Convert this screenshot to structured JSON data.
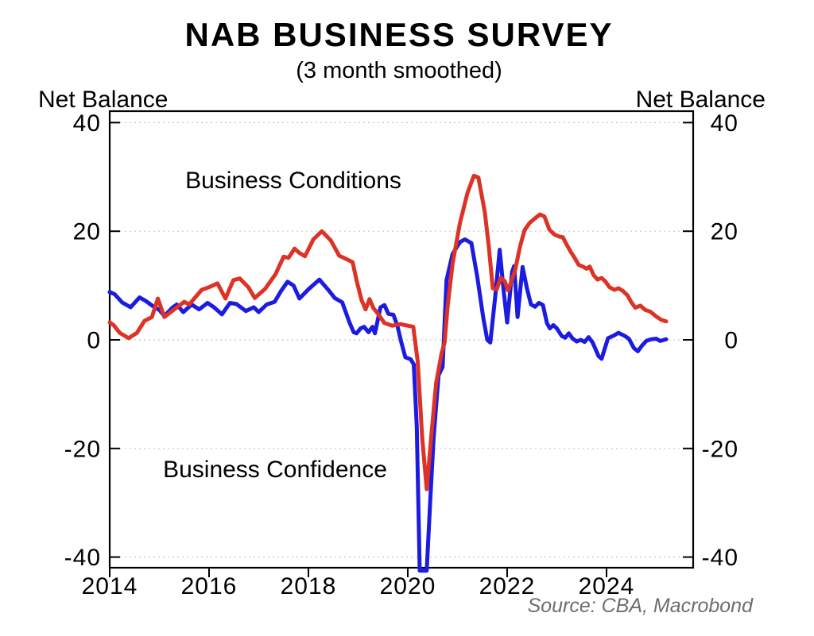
{
  "header": {
    "title": "NAB BUSINESS SURVEY",
    "subtitle": "(3 month smoothed)"
  },
  "axis": {
    "y_label_left": "Net Balance",
    "y_label_right": "Net Balance",
    "y_ticks": [
      40,
      20,
      0,
      -20,
      -40
    ],
    "x_ticks": [
      2014,
      2016,
      2018,
      2020,
      2022,
      2024
    ]
  },
  "source": {
    "text": "Source: CBA, Macrobond"
  },
  "colors": {
    "conditions": "#dd3226",
    "confidence": "#1c1ce0",
    "grid": "#c8c8c8",
    "frame": "#000000",
    "source_text": "#6e6e6e"
  },
  "chart_data": {
    "type": "line",
    "title": "NAB BUSINESS SURVEY",
    "subtitle": "(3 month smoothed)",
    "ylabel": "Net Balance",
    "xlabel": "",
    "xlim": [
      2014,
      2025.76
    ],
    "ylim": [
      -42,
      42.5
    ],
    "x_ticks": [
      2014,
      2016,
      2018,
      2020,
      2022,
      2024
    ],
    "y_ticks": [
      40,
      20,
      0,
      -20,
      -40
    ],
    "grid": "horizontal dotted gridlines at y ticks",
    "legend": "inline colored labels on plot",
    "series": [
      {
        "name": "Business Conditions",
        "color": "#dd3226",
        "points": [
          [
            2014.0,
            3.2
          ],
          [
            2014.08,
            2.7
          ],
          [
            2014.2,
            1.3
          ],
          [
            2014.38,
            0.3
          ],
          [
            2014.55,
            1.3
          ],
          [
            2014.7,
            3.5
          ],
          [
            2014.85,
            4.2
          ],
          [
            2014.97,
            7.6
          ],
          [
            2015.1,
            4.2
          ],
          [
            2015.3,
            5.6
          ],
          [
            2015.5,
            7.0
          ],
          [
            2015.6,
            6.5
          ],
          [
            2015.85,
            9.2
          ],
          [
            2016.0,
            9.7
          ],
          [
            2016.17,
            10.4
          ],
          [
            2016.33,
            7.6
          ],
          [
            2016.49,
            11.0
          ],
          [
            2016.62,
            11.3
          ],
          [
            2016.79,
            9.7
          ],
          [
            2016.92,
            7.7
          ],
          [
            2017.13,
            9.4
          ],
          [
            2017.34,
            12.1
          ],
          [
            2017.5,
            15.3
          ],
          [
            2017.6,
            15.1
          ],
          [
            2017.72,
            16.8
          ],
          [
            2017.82,
            16.0
          ],
          [
            2017.93,
            15.4
          ],
          [
            2018.1,
            18.5
          ],
          [
            2018.27,
            20.0
          ],
          [
            2018.45,
            18.3
          ],
          [
            2018.62,
            15.5
          ],
          [
            2018.78,
            14.8
          ],
          [
            2018.89,
            14.3
          ],
          [
            2018.97,
            10.9
          ],
          [
            2019.07,
            7.3
          ],
          [
            2019.15,
            5.6
          ],
          [
            2019.23,
            7.5
          ],
          [
            2019.31,
            5.8
          ],
          [
            2019.4,
            4.8
          ],
          [
            2019.53,
            3.1
          ],
          [
            2019.69,
            2.6
          ],
          [
            2019.85,
            2.9
          ],
          [
            2020.0,
            2.6
          ],
          [
            2020.11,
            2.4
          ],
          [
            2020.2,
            -4.0
          ],
          [
            2020.29,
            -18.0
          ],
          [
            2020.38,
            -27.5
          ],
          [
            2020.47,
            -18.0
          ],
          [
            2020.57,
            -8.0
          ],
          [
            2020.68,
            -2.5
          ],
          [
            2020.74,
            -0.5
          ],
          [
            2020.8,
            6.0
          ],
          [
            2020.9,
            14.0
          ],
          [
            2021.05,
            21.5
          ],
          [
            2021.2,
            27.0
          ],
          [
            2021.33,
            30.2
          ],
          [
            2021.42,
            29.9
          ],
          [
            2021.55,
            23.5
          ],
          [
            2021.63,
            17.2
          ],
          [
            2021.71,
            9.5
          ],
          [
            2021.79,
            9.3
          ],
          [
            2021.87,
            11.4
          ],
          [
            2021.95,
            10.8
          ],
          [
            2022.02,
            9.1
          ],
          [
            2022.16,
            12.8
          ],
          [
            2022.26,
            17.2
          ],
          [
            2022.35,
            20.2
          ],
          [
            2022.45,
            21.5
          ],
          [
            2022.55,
            22.3
          ],
          [
            2022.66,
            23.1
          ],
          [
            2022.75,
            22.7
          ],
          [
            2022.85,
            20.3
          ],
          [
            2022.95,
            19.4
          ],
          [
            2023.05,
            19.0
          ],
          [
            2023.12,
            18.9
          ],
          [
            2023.2,
            17.5
          ],
          [
            2023.28,
            16.2
          ],
          [
            2023.35,
            15.2
          ],
          [
            2023.44,
            13.8
          ],
          [
            2023.52,
            13.5
          ],
          [
            2023.6,
            13.1
          ],
          [
            2023.66,
            13.5
          ],
          [
            2023.74,
            11.9
          ],
          [
            2023.82,
            11.1
          ],
          [
            2023.9,
            11.4
          ],
          [
            2023.98,
            10.7
          ],
          [
            2024.06,
            9.7
          ],
          [
            2024.16,
            9.2
          ],
          [
            2024.24,
            9.5
          ],
          [
            2024.33,
            9.0
          ],
          [
            2024.42,
            8.2
          ],
          [
            2024.5,
            6.9
          ],
          [
            2024.58,
            5.9
          ],
          [
            2024.68,
            6.3
          ],
          [
            2024.78,
            5.5
          ],
          [
            2024.88,
            5.2
          ],
          [
            2025.0,
            4.3
          ],
          [
            2025.1,
            3.7
          ],
          [
            2025.2,
            3.4
          ]
        ]
      },
      {
        "name": "Business Confidence",
        "color": "#1c1ce0",
        "points": [
          [
            2014.0,
            8.8
          ],
          [
            2014.1,
            8.4
          ],
          [
            2014.25,
            6.9
          ],
          [
            2014.42,
            6.0
          ],
          [
            2014.6,
            7.8
          ],
          [
            2014.72,
            7.2
          ],
          [
            2014.87,
            6.2
          ],
          [
            2015.0,
            5.5
          ],
          [
            2015.1,
            4.4
          ],
          [
            2015.27,
            6.0
          ],
          [
            2015.35,
            6.5
          ],
          [
            2015.48,
            5.1
          ],
          [
            2015.65,
            6.5
          ],
          [
            2015.8,
            5.6
          ],
          [
            2015.97,
            6.8
          ],
          [
            2016.1,
            6.0
          ],
          [
            2016.26,
            4.7
          ],
          [
            2016.42,
            6.8
          ],
          [
            2016.55,
            6.6
          ],
          [
            2016.74,
            5.3
          ],
          [
            2016.9,
            6.0
          ],
          [
            2017.0,
            5.1
          ],
          [
            2017.16,
            6.5
          ],
          [
            2017.32,
            7.0
          ],
          [
            2017.45,
            9.0
          ],
          [
            2017.58,
            10.7
          ],
          [
            2017.7,
            10.0
          ],
          [
            2017.82,
            7.6
          ],
          [
            2018.0,
            9.3
          ],
          [
            2018.22,
            11.1
          ],
          [
            2018.4,
            9.2
          ],
          [
            2018.53,
            7.7
          ],
          [
            2018.68,
            6.9
          ],
          [
            2018.83,
            3.1
          ],
          [
            2018.91,
            1.4
          ],
          [
            2018.97,
            1.2
          ],
          [
            2019.05,
            2.1
          ],
          [
            2019.12,
            2.4
          ],
          [
            2019.21,
            1.4
          ],
          [
            2019.29,
            2.4
          ],
          [
            2019.34,
            1.2
          ],
          [
            2019.45,
            6.0
          ],
          [
            2019.53,
            6.4
          ],
          [
            2019.61,
            4.8
          ],
          [
            2019.71,
            4.6
          ],
          [
            2019.79,
            2.6
          ],
          [
            2019.87,
            -0.5
          ],
          [
            2019.95,
            -3.2
          ],
          [
            2020.06,
            -3.6
          ],
          [
            2020.12,
            -4.5
          ],
          [
            2020.18,
            -16.0
          ],
          [
            2020.24,
            -42.5
          ],
          [
            2020.38,
            -42.5
          ],
          [
            2020.45,
            -30.0
          ],
          [
            2020.52,
            -18.0
          ],
          [
            2020.62,
            -6.5
          ],
          [
            2020.7,
            -5.0
          ],
          [
            2020.78,
            11.0
          ],
          [
            2020.9,
            15.8
          ],
          [
            2021.05,
            18.0
          ],
          [
            2021.15,
            18.5
          ],
          [
            2021.28,
            17.8
          ],
          [
            2021.4,
            11.5
          ],
          [
            2021.52,
            4.0
          ],
          [
            2021.6,
            0.0
          ],
          [
            2021.66,
            -0.5
          ],
          [
            2021.76,
            8.0
          ],
          [
            2021.85,
            16.6
          ],
          [
            2021.93,
            9.0
          ],
          [
            2022.0,
            3.2
          ],
          [
            2022.1,
            12.5
          ],
          [
            2022.14,
            13.6
          ],
          [
            2022.21,
            4.2
          ],
          [
            2022.31,
            13.4
          ],
          [
            2022.4,
            9.4
          ],
          [
            2022.48,
            6.5
          ],
          [
            2022.56,
            6.1
          ],
          [
            2022.64,
            6.8
          ],
          [
            2022.72,
            6.4
          ],
          [
            2022.8,
            3.1
          ],
          [
            2022.86,
            2.1
          ],
          [
            2022.93,
            2.7
          ],
          [
            2023.0,
            2.1
          ],
          [
            2023.1,
            0.7
          ],
          [
            2023.17,
            0.4
          ],
          [
            2023.24,
            1.2
          ],
          [
            2023.32,
            0.2
          ],
          [
            2023.4,
            -0.3
          ],
          [
            2023.48,
            0.0
          ],
          [
            2023.56,
            -0.4
          ],
          [
            2023.64,
            0.5
          ],
          [
            2023.72,
            -0.5
          ],
          [
            2023.84,
            -3.0
          ],
          [
            2023.9,
            -3.5
          ],
          [
            2024.03,
            0.3
          ],
          [
            2024.15,
            0.8
          ],
          [
            2024.24,
            1.3
          ],
          [
            2024.37,
            0.7
          ],
          [
            2024.45,
            0.2
          ],
          [
            2024.55,
            -1.5
          ],
          [
            2024.63,
            -2.1
          ],
          [
            2024.72,
            -1.0
          ],
          [
            2024.8,
            -0.2
          ],
          [
            2024.9,
            0.1
          ],
          [
            2025.0,
            0.2
          ],
          [
            2025.08,
            -0.2
          ],
          [
            2025.2,
            0.1
          ]
        ]
      }
    ]
  }
}
